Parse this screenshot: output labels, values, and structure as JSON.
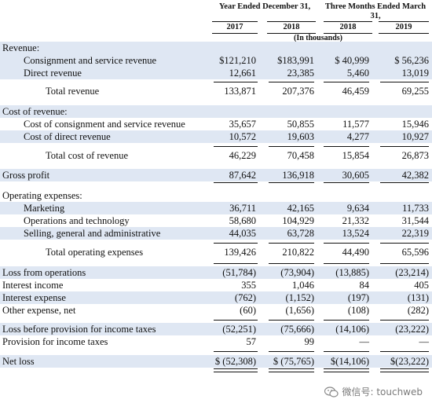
{
  "header": {
    "group1": "Year Ended December 31,",
    "group2": "Three Months Ended March 31,",
    "cols": [
      "2017",
      "2018",
      "2018",
      "2019"
    ],
    "units": "(In thousands)"
  },
  "rows": [
    {
      "label": "Revenue:",
      "indent": 0,
      "band": true,
      "values": [
        "",
        "",
        "",
        ""
      ]
    },
    {
      "label": "Consignment and service revenue",
      "indent": 1,
      "band": true,
      "values": [
        "$121,210",
        "$183,991",
        "$ 40,999",
        "$ 56,236"
      ]
    },
    {
      "label": "Direct revenue",
      "indent": 1,
      "band": true,
      "values": [
        "12,661",
        "23,385",
        "5,460",
        "13,019"
      ]
    },
    {
      "label": "Total revenue",
      "indent": 2,
      "band": false,
      "values": [
        "133,871",
        "207,376",
        "46,459",
        "69,255"
      ]
    },
    {
      "label": "Cost of revenue:",
      "indent": 0,
      "band": true,
      "values": [
        "",
        "",
        "",
        ""
      ]
    },
    {
      "label": "Cost of consignment and service revenue",
      "indent": 1,
      "band": false,
      "values": [
        "35,657",
        "50,855",
        "11,577",
        "15,946"
      ]
    },
    {
      "label": "Cost of direct revenue",
      "indent": 1,
      "band": true,
      "values": [
        "10,572",
        "19,603",
        "4,277",
        "10,927"
      ]
    },
    {
      "label": "Total cost of revenue",
      "indent": 2,
      "band": false,
      "values": [
        "46,229",
        "70,458",
        "15,854",
        "26,873"
      ]
    },
    {
      "label": "Gross profit",
      "indent": 0,
      "band": true,
      "values": [
        "87,642",
        "136,918",
        "30,605",
        "42,382"
      ]
    },
    {
      "label": "Operating expenses:",
      "indent": 0,
      "band": false,
      "values": [
        "",
        "",
        "",
        ""
      ]
    },
    {
      "label": "Marketing",
      "indent": 1,
      "band": true,
      "values": [
        "36,711",
        "42,165",
        "9,634",
        "11,733"
      ]
    },
    {
      "label": "Operations and technology",
      "indent": 1,
      "band": false,
      "values": [
        "58,680",
        "104,929",
        "21,332",
        "31,544"
      ]
    },
    {
      "label": "Selling, general and administrative",
      "indent": 1,
      "band": true,
      "values": [
        "44,035",
        "63,728",
        "13,524",
        "22,319"
      ]
    },
    {
      "label": "Total operating expenses",
      "indent": 2,
      "band": false,
      "values": [
        "139,426",
        "210,822",
        "44,490",
        "65,596"
      ]
    },
    {
      "label": "Loss from operations",
      "indent": 0,
      "band": true,
      "values": [
        "(51,784)",
        "(73,904)",
        "(13,885)",
        "(23,214)"
      ]
    },
    {
      "label": "Interest income",
      "indent": 0,
      "band": false,
      "values": [
        "355",
        "1,046",
        "84",
        "405"
      ]
    },
    {
      "label": "Interest expense",
      "indent": 0,
      "band": true,
      "values": [
        "(762)",
        "(1,152)",
        "(197)",
        "(131)"
      ]
    },
    {
      "label": "Other expense, net",
      "indent": 0,
      "band": false,
      "values": [
        "(60)",
        "(1,656)",
        "(108)",
        "(282)"
      ]
    },
    {
      "label": "Loss before provision for income taxes",
      "indent": 0,
      "band": true,
      "values": [
        "(52,251)",
        "(75,666)",
        "(14,106)",
        "(23,222)"
      ]
    },
    {
      "label": "Provision for income taxes",
      "indent": 0,
      "band": false,
      "values": [
        "57",
        "99",
        "—",
        "—"
      ]
    },
    {
      "label": "Net loss",
      "indent": 0,
      "band": true,
      "values": [
        "$ (52,308)",
        "$ (75,765)",
        "$(14,106)",
        "$(23,222)"
      ]
    }
  ],
  "watermark": {
    "text": "微信号: touchweb",
    "icon": "wechat-icon"
  }
}
